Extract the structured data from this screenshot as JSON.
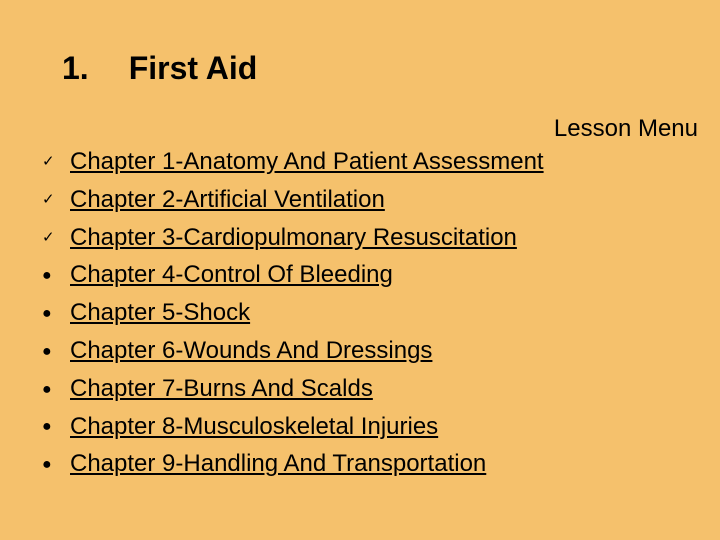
{
  "background_color": "#f5c16c",
  "title": {
    "number": "1.",
    "text": "First Aid",
    "fontsize": 32,
    "font_weight": "bold",
    "color": "#000000"
  },
  "lesson_menu": {
    "label": "Lesson Menu",
    "fontsize": 24,
    "color": "#000000"
  },
  "chapters": {
    "item_fontsize": 24,
    "item_color": "#000000",
    "underline": true,
    "bullet_check": "✓",
    "bullet_dot": "●",
    "items": [
      {
        "bullet": "check",
        "label": "Chapter 1-Anatomy And Patient Assessment"
      },
      {
        "bullet": "check",
        "label": "Chapter 2-Artificial Ventilation"
      },
      {
        "bullet": "check",
        "label": "Chapter 3-Cardiopulmonary Resuscitation"
      },
      {
        "bullet": "dot",
        "label": "Chapter 4-Control Of Bleeding"
      },
      {
        "bullet": "dot",
        "label": "Chapter 5-Shock"
      },
      {
        "bullet": "dot",
        "label": "Chapter 6-Wounds And Dressings"
      },
      {
        "bullet": "dot",
        "label": "Chapter 7-Burns And Scalds"
      },
      {
        "bullet": "dot",
        "label": "Chapter 8-Musculoskeletal Injuries"
      },
      {
        "bullet": "dot",
        "label": "Chapter 9-Handling And Transportation"
      }
    ]
  }
}
